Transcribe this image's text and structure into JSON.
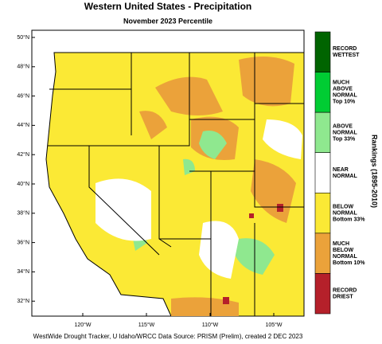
{
  "header": {
    "title": "Western United States - Precipitation",
    "subtitle": "November 2023 Percentile"
  },
  "map": {
    "lat_labels": [
      "50°N",
      "48°N",
      "46°N",
      "44°N",
      "42°N",
      "40°N",
      "38°N",
      "36°N",
      "34°N",
      "32°N"
    ],
    "lon_labels": [
      "120°W",
      "115°W",
      "110°W",
      "105°W"
    ]
  },
  "legend": {
    "title": "Rankings (1895-2010)",
    "items": [
      {
        "lines": [
          "RECORD",
          "WETTEST"
        ],
        "color": "#006400"
      },
      {
        "lines": [
          "MUCH",
          "ABOVE",
          "NORMAL",
          "Top 10%"
        ],
        "color": "#00cc33"
      },
      {
        "lines": [
          "ABOVE",
          "NORMAL",
          "Top 33%"
        ],
        "color": "#8fe88f"
      },
      {
        "lines": [
          "NEAR",
          "NORMAL"
        ],
        "color": "#ffffff"
      },
      {
        "lines": [
          "BELOW",
          "NORMAL",
          "Bottom 33%"
        ],
        "color": "#fbe935"
      },
      {
        "lines": [
          "MUCH",
          "BELOW",
          "NORMAL",
          "Bottom 10%"
        ],
        "color": "#eba23a"
      },
      {
        "lines": [
          "RECORD",
          "DRIEST"
        ],
        "color": "#b5202a"
      }
    ]
  },
  "footer": {
    "credit": "WestWide Drought Tracker, U Idaho/WRCC Data Source: PRISM (Prelim), created  2 DEC 2023"
  }
}
